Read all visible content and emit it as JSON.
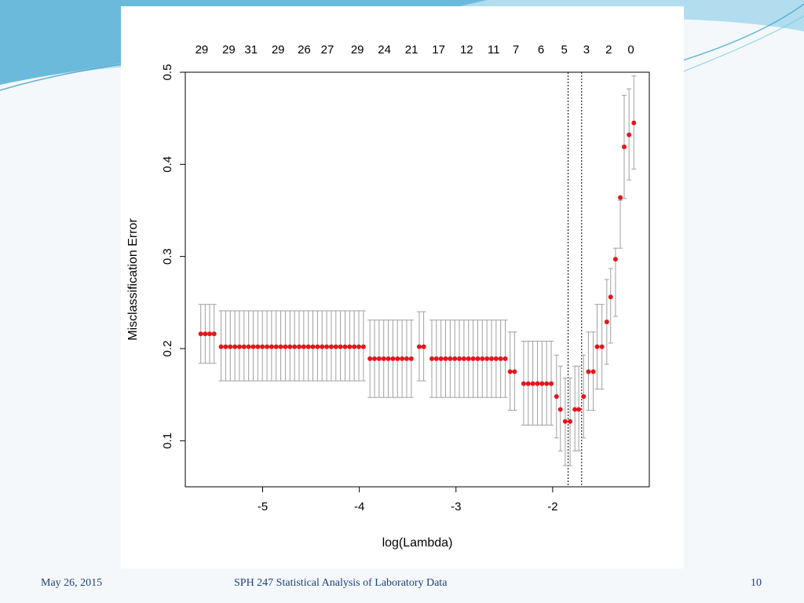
{
  "footer": {
    "date": "May 26, 2015",
    "course": "SPH 247 Statistical Analysis of Laboratory Data",
    "page_number": "10"
  },
  "colors": {
    "point": "#e8141a",
    "errorbar": "#a0a0a0",
    "footer_text": "#1f3e7a",
    "swoosh": "#4fb2d6"
  },
  "chart_data": {
    "type": "scatter",
    "xlabel": "log(Lambda)",
    "ylabel": "Misclassification Error",
    "xlim": [
      -5.8,
      -1.0
    ],
    "ylim": [
      0.05,
      0.5
    ],
    "x_ticks": [
      -5,
      -4,
      -3,
      -2
    ],
    "y_ticks": [
      0.1,
      0.2,
      0.3,
      0.4,
      0.5
    ],
    "top_axis": [
      {
        "x": -5.63,
        "label": "29"
      },
      {
        "x": -5.35,
        "label": "29"
      },
      {
        "x": -5.12,
        "label": "31"
      },
      {
        "x": -4.84,
        "label": "29"
      },
      {
        "x": -4.57,
        "label": "26"
      },
      {
        "x": -4.33,
        "label": "27"
      },
      {
        "x": -4.02,
        "label": "29"
      },
      {
        "x": -3.74,
        "label": "24"
      },
      {
        "x": -3.46,
        "label": "21"
      },
      {
        "x": -3.18,
        "label": "17"
      },
      {
        "x": -2.89,
        "label": "12"
      },
      {
        "x": -2.61,
        "label": "11"
      },
      {
        "x": -2.38,
        "label": "7"
      },
      {
        "x": -2.12,
        "label": "6"
      },
      {
        "x": -1.88,
        "label": "5"
      },
      {
        "x": -1.65,
        "label": "3"
      },
      {
        "x": -1.42,
        "label": "2"
      },
      {
        "x": -1.19,
        "label": "0"
      }
    ],
    "vlines": [
      -1.84,
      -1.7
    ],
    "grid": false,
    "segments": [
      {
        "x_start": -5.64,
        "x_end": -5.48,
        "step": 0.046,
        "mean": 0.216,
        "lower": 0.184,
        "upper": 0.248
      },
      {
        "x_start": -5.43,
        "x_end": -3.95,
        "step": 0.0475,
        "mean": 0.202,
        "lower": 0.165,
        "upper": 0.241
      },
      {
        "x_start": -3.89,
        "x_end": -3.44,
        "step": 0.0475,
        "mean": 0.189,
        "lower": 0.147,
        "upper": 0.231
      },
      {
        "x_start": -3.38,
        "x_end": -3.3,
        "step": 0.046,
        "mean": 0.202,
        "lower": 0.165,
        "upper": 0.24
      },
      {
        "x_start": -3.25,
        "x_end": -2.49,
        "step": 0.0475,
        "mean": 0.189,
        "lower": 0.147,
        "upper": 0.231
      },
      {
        "x_start": -2.44,
        "x_end": -2.35,
        "step": 0.046,
        "mean": 0.175,
        "lower": 0.133,
        "upper": 0.218
      },
      {
        "x_start": -2.3,
        "x_end": -2.01,
        "step": 0.0475,
        "mean": 0.162,
        "lower": 0.117,
        "upper": 0.208
      }
    ],
    "points": [
      {
        "x": -1.96,
        "mean": 0.148,
        "lower": 0.103,
        "upper": 0.193
      },
      {
        "x": -1.92,
        "mean": 0.134,
        "lower": 0.089,
        "upper": 0.181
      },
      {
        "x": -1.87,
        "mean": 0.121,
        "lower": 0.073,
        "upper": 0.168
      },
      {
        "x": -1.82,
        "mean": 0.121,
        "lower": 0.073,
        "upper": 0.168
      },
      {
        "x": -1.77,
        "mean": 0.134,
        "lower": 0.089,
        "upper": 0.181
      },
      {
        "x": -1.73,
        "mean": 0.134,
        "lower": 0.089,
        "upper": 0.181
      },
      {
        "x": -1.68,
        "mean": 0.148,
        "lower": 0.103,
        "upper": 0.193
      },
      {
        "x": -1.63,
        "mean": 0.175,
        "lower": 0.133,
        "upper": 0.218
      },
      {
        "x": -1.58,
        "mean": 0.175,
        "lower": 0.133,
        "upper": 0.218
      },
      {
        "x": -1.54,
        "mean": 0.202,
        "lower": 0.156,
        "upper": 0.248
      },
      {
        "x": -1.49,
        "mean": 0.202,
        "lower": 0.156,
        "upper": 0.248
      },
      {
        "x": -1.44,
        "mean": 0.229,
        "lower": 0.183,
        "upper": 0.275
      },
      {
        "x": -1.4,
        "mean": 0.256,
        "lower": 0.206,
        "upper": 0.287
      },
      {
        "x": -1.35,
        "mean": 0.297,
        "lower": 0.235,
        "upper": 0.309
      },
      {
        "x": -1.3,
        "mean": 0.364,
        "lower": 0.309,
        "upper": 0.361
      },
      {
        "x": -1.26,
        "mean": 0.419,
        "lower": 0.363,
        "upper": 0.475
      },
      {
        "x": -1.21,
        "mean": 0.432,
        "lower": 0.383,
        "upper": 0.482
      },
      {
        "x": -1.16,
        "mean": 0.445,
        "lower": 0.395,
        "upper": 0.496
      }
    ]
  }
}
